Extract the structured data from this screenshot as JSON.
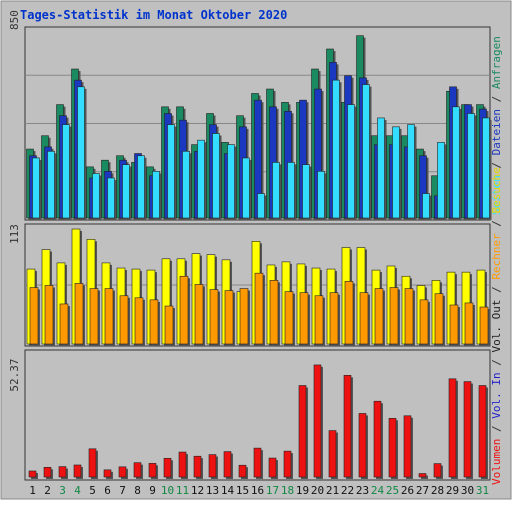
{
  "chart_data": [
    {
      "type": "bar",
      "title": "Tages-Statistik im Monat Oktober 2020",
      "categories": [
        "1",
        "2",
        "3",
        "4",
        "5",
        "6",
        "7",
        "8",
        "9",
        "10",
        "11",
        "12",
        "13",
        "14",
        "15",
        "16",
        "17",
        "18",
        "19",
        "20",
        "21",
        "22",
        "23",
        "24",
        "25",
        "26",
        "27",
        "28",
        "29",
        "30",
        "31"
      ],
      "weekend_days": [
        "3",
        "4",
        "10",
        "11",
        "17",
        "18",
        "24",
        "25",
        "31"
      ],
      "y_tick_label": "850",
      "ylim": [
        0,
        850
      ],
      "series": [
        {
          "name": "Anfragen",
          "color": "#1a8a60",
          "values": [
            310,
            370,
            510,
            670,
            230,
            260,
            280,
            250,
            230,
            500,
            500,
            330,
            470,
            340,
            460,
            560,
            580,
            520,
            520,
            670,
            760,
            520,
            820,
            370,
            370,
            370,
            310,
            190,
            570,
            510,
            510
          ]
        },
        {
          "name": "Dateien",
          "color": "#1a38c0",
          "values": [
            280,
            320,
            460,
            620,
            180,
            210,
            260,
            290,
            190,
            470,
            440,
            300,
            420,
            290,
            410,
            530,
            500,
            480,
            530,
            580,
            700,
            640,
            630,
            330,
            330,
            320,
            280,
            100,
            590,
            510,
            490
          ]
        },
        {
          "name": "Seiten",
          "color": "#33ddff",
          "values": [
            270,
            300,
            420,
            590,
            200,
            180,
            240,
            280,
            210,
            420,
            300,
            350,
            380,
            330,
            270,
            110,
            250,
            250,
            240,
            210,
            620,
            510,
            600,
            450,
            410,
            420,
            110,
            340,
            500,
            470,
            450
          ]
        }
      ]
    },
    {
      "type": "bar",
      "y_tick_label": "113",
      "ylim": [
        0,
        113
      ],
      "series": [
        {
          "name": "Besuche",
          "color": "#ffff00",
          "values": [
            73,
            92,
            79,
            112,
            102,
            79,
            74,
            73,
            72,
            83,
            83,
            88,
            87,
            82,
            51,
            100,
            77,
            80,
            78,
            74,
            73,
            94,
            94,
            72,
            76,
            66,
            57,
            62,
            70,
            70,
            72
          ]
        },
        {
          "name": "Rechner",
          "color": "#ff9900",
          "values": [
            55,
            57,
            39,
            59,
            54,
            54,
            47,
            45,
            43,
            37,
            66,
            58,
            53,
            52,
            54,
            69,
            62,
            51,
            50,
            47,
            50,
            61,
            50,
            54,
            55,
            54,
            43,
            49,
            38,
            40,
            36
          ]
        }
      ]
    },
    {
      "type": "bar",
      "y_tick_label": "52.37",
      "ylim": [
        0,
        52.37
      ],
      "series": [
        {
          "name": "Volumen",
          "color": "#ee1111",
          "values": [
            2.6,
            4.2,
            4.5,
            5.2,
            12.2,
            3.1,
            4.4,
            6.2,
            5.9,
            8.1,
            10.8,
            9.0,
            9.7,
            11.0,
            5.1,
            12.5,
            8.2,
            11.2,
            39.6,
            48.5,
            20.1,
            44.0,
            27.5,
            32.8,
            25.4,
            26.5,
            1.5,
            5.8,
            42.5,
            41.3,
            39.6
          ]
        },
        {
          "name": "Vol. In",
          "color": "#2222cc",
          "values": []
        },
        {
          "name": "Vol. Out",
          "color": "#222222",
          "values": []
        }
      ]
    }
  ]
}
